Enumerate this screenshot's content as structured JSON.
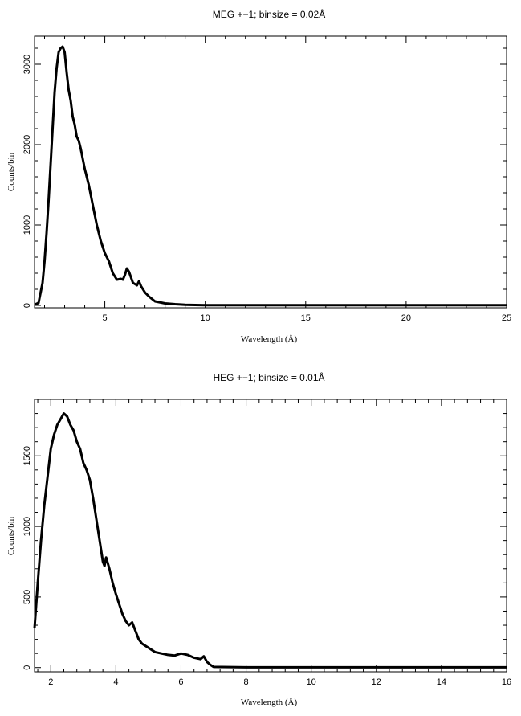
{
  "chart_data": [
    {
      "type": "line",
      "title": "MEG +−1; binsize = 0.02Å",
      "xlabel": "Wavelength (Å)",
      "ylabel": "Counts/bin",
      "xlim": [
        1.5,
        25
      ],
      "ylim": [
        -30,
        3350
      ],
      "xticks": [
        5,
        10,
        15,
        20,
        25
      ],
      "yticks": [
        0,
        1000,
        2000,
        3000
      ],
      "grid": false,
      "series": [
        {
          "x": [
            1.5,
            1.7,
            1.9,
            2.0,
            2.1,
            2.2,
            2.3,
            2.4,
            2.5,
            2.6,
            2.7,
            2.8,
            2.9,
            3.0,
            3.1,
            3.2,
            3.3,
            3.4,
            3.5,
            3.6,
            3.7,
            3.8,
            4.0,
            4.2,
            4.4,
            4.6,
            4.8,
            5.0,
            5.2,
            5.4,
            5.6,
            5.8,
            5.9,
            6.0,
            6.1,
            6.2,
            6.4,
            6.6,
            6.7,
            6.8,
            7.0,
            7.2,
            7.5,
            8.0,
            8.5,
            9.0,
            9.5,
            10.0,
            12.0,
            15.0,
            20.0,
            25.0
          ],
          "y": [
            10,
            30,
            280,
            550,
            900,
            1300,
            1750,
            2200,
            2650,
            2950,
            3150,
            3200,
            3220,
            3150,
            2900,
            2680,
            2550,
            2350,
            2250,
            2100,
            2050,
            1950,
            1700,
            1500,
            1250,
            1000,
            800,
            650,
            550,
            400,
            320,
            330,
            320,
            380,
            460,
            420,
            280,
            250,
            300,
            240,
            160,
            110,
            50,
            25,
            15,
            8,
            5,
            3,
            2,
            2,
            2,
            2
          ]
        }
      ]
    },
    {
      "type": "line",
      "title": "HEG +−1; binsize = 0.01Å",
      "xlabel": "Wavelength (Å)",
      "ylabel": "Counts/bin",
      "xlim": [
        1.5,
        16
      ],
      "ylim": [
        -30,
        1900
      ],
      "xticks": [
        2,
        4,
        6,
        8,
        10,
        12,
        14,
        16
      ],
      "yticks": [
        0,
        500,
        1000,
        1500
      ],
      "grid": false,
      "series": [
        {
          "x": [
            1.5,
            1.6,
            1.7,
            1.8,
            1.9,
            2.0,
            2.1,
            2.2,
            2.3,
            2.4,
            2.5,
            2.6,
            2.7,
            2.8,
            2.9,
            3.0,
            3.1,
            3.2,
            3.3,
            3.4,
            3.5,
            3.6,
            3.65,
            3.7,
            3.8,
            3.9,
            4.0,
            4.1,
            4.2,
            4.3,
            4.4,
            4.5,
            4.6,
            4.7,
            4.8,
            5.0,
            5.2,
            5.4,
            5.6,
            5.8,
            6.0,
            6.2,
            6.4,
            6.6,
            6.7,
            6.8,
            6.9,
            7.0,
            8.0,
            10.0,
            12.0,
            14.0,
            16.0
          ],
          "y": [
            280,
            600,
            900,
            1150,
            1350,
            1550,
            1650,
            1720,
            1760,
            1800,
            1780,
            1720,
            1680,
            1600,
            1550,
            1450,
            1400,
            1330,
            1200,
            1050,
            900,
            750,
            720,
            780,
            700,
            600,
            520,
            450,
            380,
            330,
            300,
            320,
            260,
            200,
            170,
            140,
            110,
            100,
            90,
            85,
            100,
            90,
            70,
            60,
            80,
            40,
            20,
            5,
            2,
            2,
            2,
            2,
            2
          ]
        }
      ]
    }
  ]
}
